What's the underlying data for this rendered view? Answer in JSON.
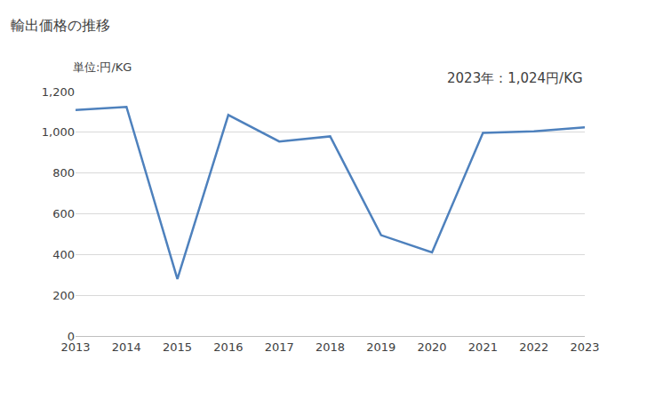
{
  "chart_data": {
    "type": "line",
    "title": "輸出価格の推移",
    "ylabel": "単位:円/KG",
    "annotations": [
      "2023年：1,024円/KG"
    ],
    "categories": [
      "2013",
      "2014",
      "2015",
      "2016",
      "2017",
      "2018",
      "2019",
      "2020",
      "2021",
      "2022",
      "2023"
    ],
    "values": [
      1110,
      1125,
      280,
      1085,
      955,
      980,
      495,
      410,
      997,
      1005,
      1024
    ],
    "color": "#4e81bd",
    "ylim": [
      0,
      1200
    ],
    "yticks": [
      0,
      200,
      400,
      600,
      800,
      {
        "value": 1000,
        "label": "1,000"
      },
      {
        "value": 1200,
        "label": "1,200"
      }
    ],
    "grid": true
  }
}
